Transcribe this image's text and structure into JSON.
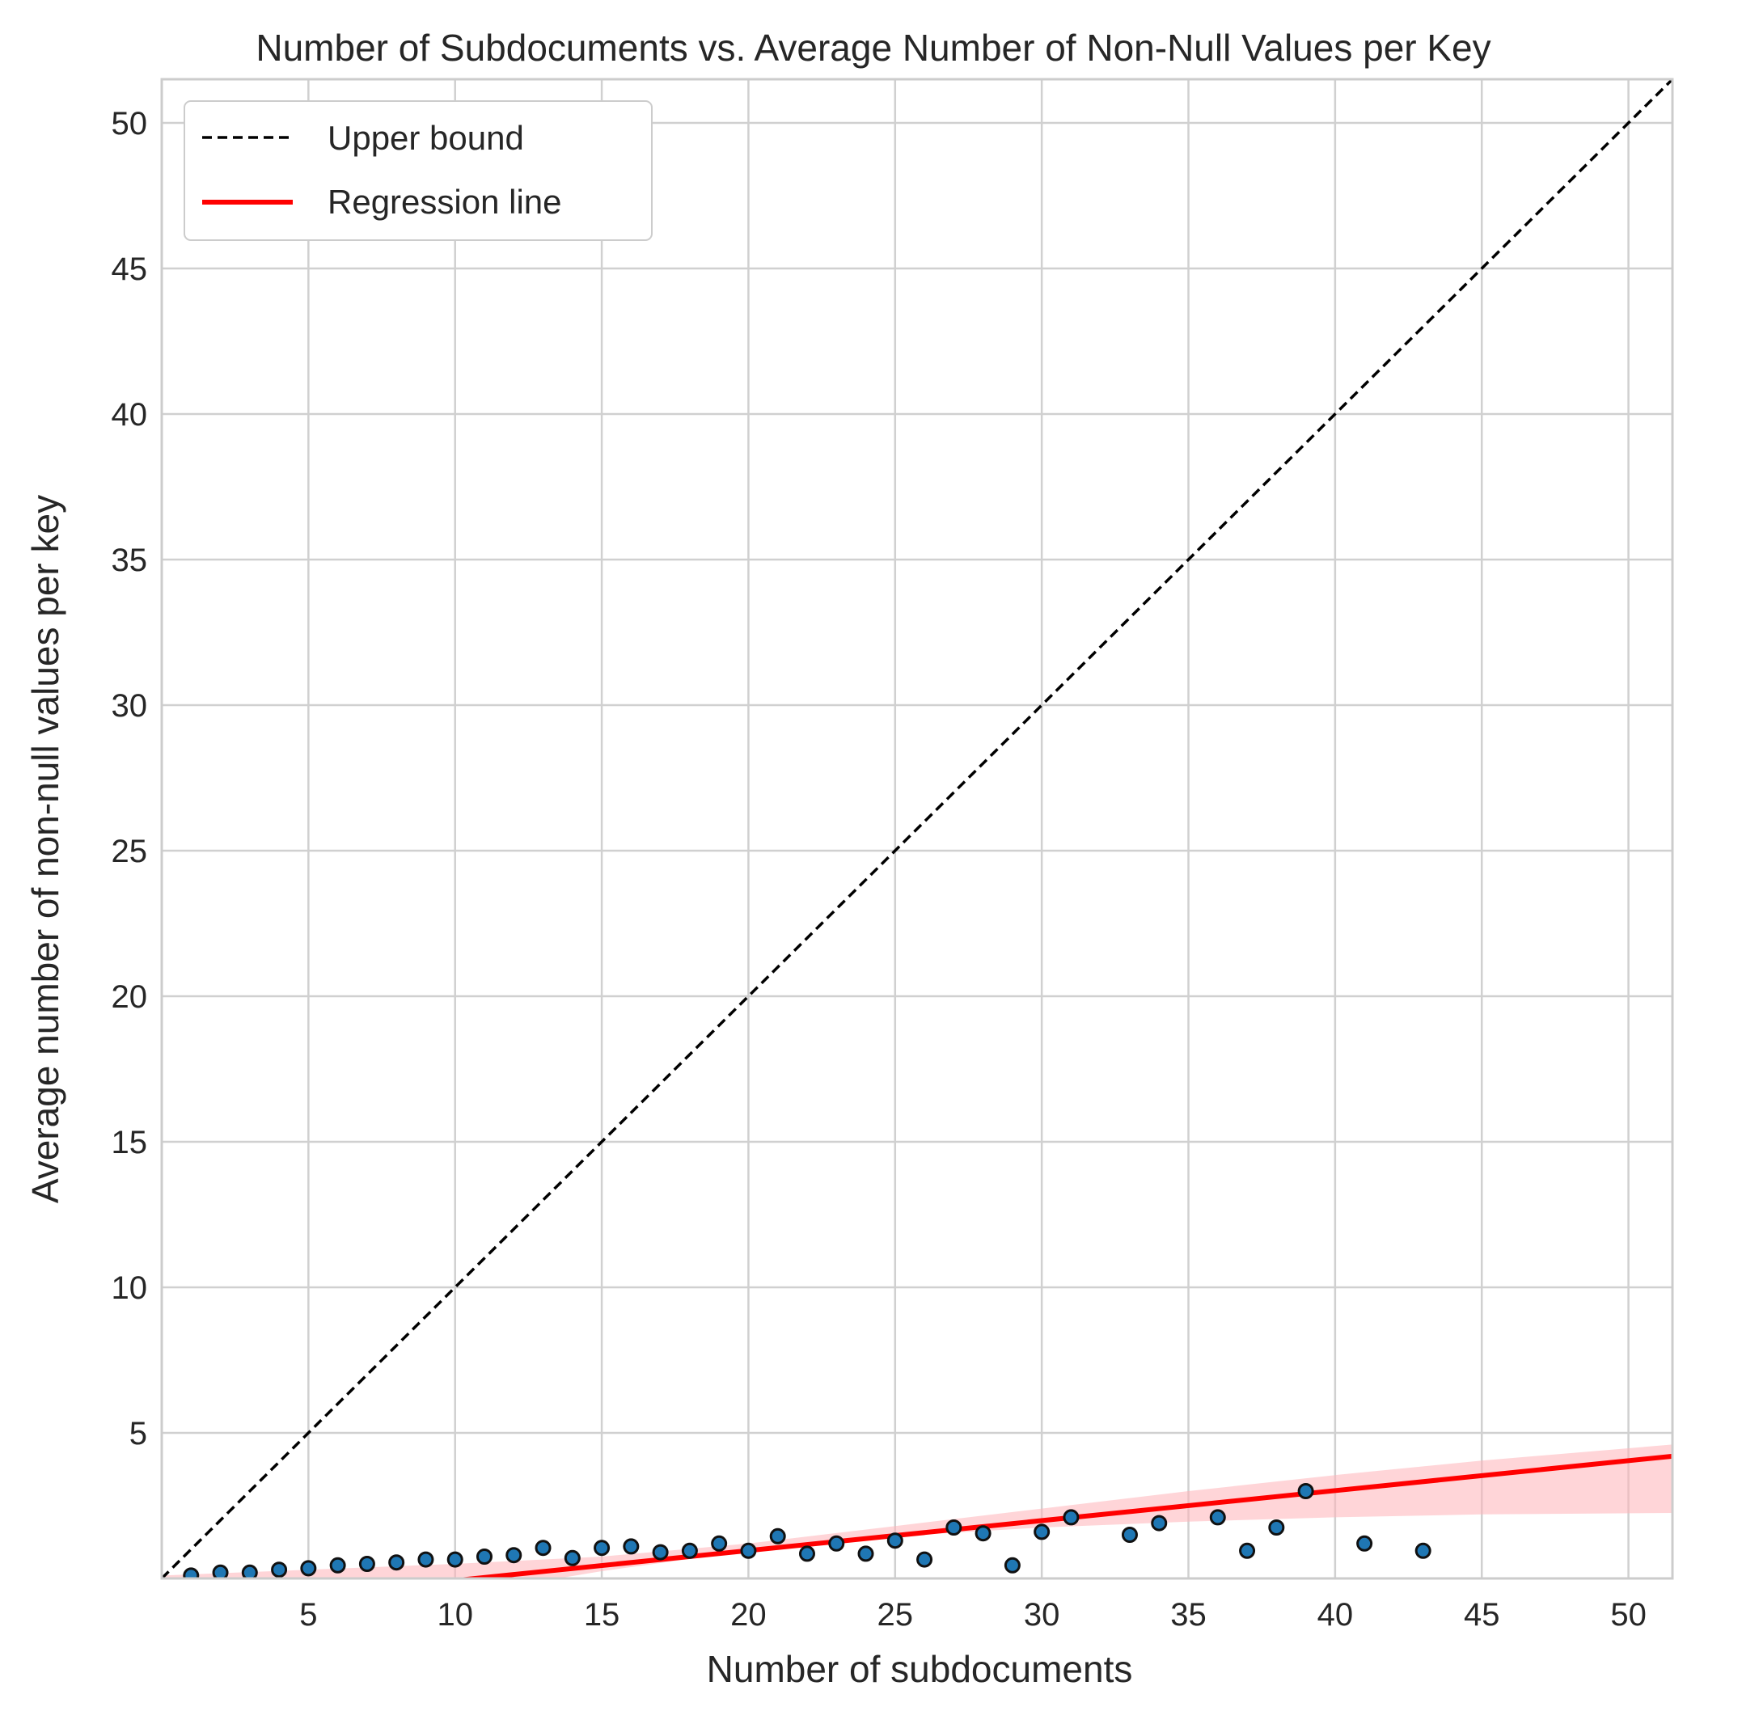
{
  "chart_data": {
    "type": "scatter",
    "title": "Number of Subdocuments vs. Average Number of Non-Null Values per Key",
    "xlabel": "Number of subdocuments",
    "ylabel": "Average number of non-null values per key",
    "xlim": [
      0,
      51.5
    ],
    "ylim": [
      0,
      51.5
    ],
    "xticks": [
      5,
      10,
      15,
      20,
      25,
      30,
      35,
      40,
      45,
      50
    ],
    "yticks": [
      5,
      10,
      15,
      20,
      25,
      30,
      35,
      40,
      45,
      50
    ],
    "grid": true,
    "legend_position": "top-left",
    "colors": {
      "points": "#1f77b4",
      "point_edge": "#111111",
      "upper_bound": "#000000",
      "regression": "#ff0000",
      "confidence_band": "#ffb3b8",
      "grid": "#d0d0d0",
      "frame": "#cccccc"
    },
    "legend": [
      {
        "key": "upper",
        "label": "Upper bound",
        "style": "dashed",
        "color": "#000000"
      },
      {
        "key": "regression",
        "label": "Regression line",
        "style": "solid",
        "color": "#ff0000"
      }
    ],
    "series": [
      {
        "type": "scatter",
        "points": [
          [
            1,
            0.1
          ],
          [
            2,
            0.2
          ],
          [
            3,
            0.2
          ],
          [
            4,
            0.3
          ],
          [
            5,
            0.35
          ],
          [
            6,
            0.45
          ],
          [
            7,
            0.5
          ],
          [
            8,
            0.55
          ],
          [
            9,
            0.65
          ],
          [
            10,
            0.65
          ],
          [
            11,
            0.75
          ],
          [
            12,
            0.8
          ],
          [
            13,
            1.05
          ],
          [
            14,
            0.7
          ],
          [
            15,
            1.05
          ],
          [
            16,
            1.1
          ],
          [
            17,
            0.9
          ],
          [
            18,
            0.95
          ],
          [
            19,
            1.2
          ],
          [
            20,
            0.95
          ],
          [
            21,
            1.45
          ],
          [
            22,
            0.85
          ],
          [
            23,
            1.2
          ],
          [
            24,
            0.85
          ],
          [
            25,
            1.3
          ],
          [
            26,
            0.65
          ],
          [
            27,
            1.75
          ],
          [
            28,
            1.55
          ],
          [
            29,
            0.45
          ],
          [
            30,
            1.6
          ],
          [
            31,
            2.1
          ],
          [
            33,
            1.5
          ],
          [
            34,
            1.9
          ],
          [
            36,
            2.1
          ],
          [
            37,
            0.95
          ],
          [
            38,
            1.75
          ],
          [
            39,
            3.0
          ],
          [
            41,
            1.2
          ],
          [
            43,
            0.95
          ]
        ]
      },
      {
        "type": "line",
        "name": "Upper bound",
        "x": [
          0,
          51.5
        ],
        "y": [
          0,
          51.5
        ]
      },
      {
        "type": "line",
        "name": "Regression line",
        "x": [
          0,
          51.5
        ],
        "y": [
          -1.1,
          4.2
        ]
      }
    ],
    "confidence_band": {
      "x": [
        0,
        5,
        10,
        12,
        15,
        20,
        25,
        30,
        35,
        40,
        45,
        51.5
      ],
      "lower": [
        -2.2,
        -1.4,
        -0.55,
        -0.25,
        0.25,
        0.95,
        1.45,
        1.75,
        1.95,
        2.1,
        2.2,
        2.25
      ],
      "upper": [
        0.1,
        0.3,
        0.5,
        0.6,
        0.75,
        1.2,
        1.8,
        2.4,
        3.0,
        3.55,
        4.05,
        4.6
      ]
    }
  }
}
